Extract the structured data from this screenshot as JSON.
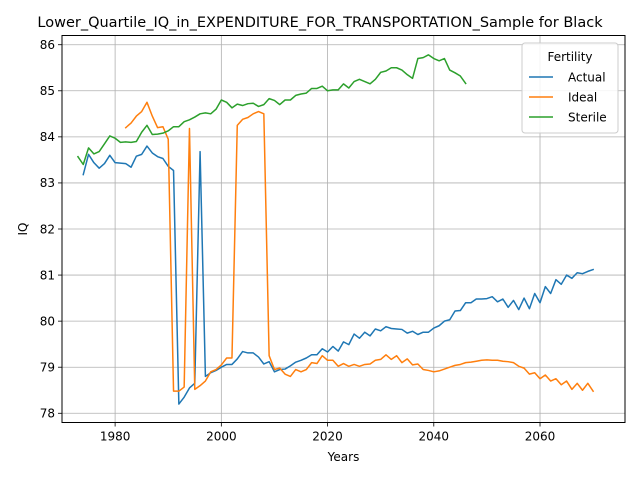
{
  "chart_data": {
    "type": "line",
    "title": "Lower_Quartile_IQ_in_EXPENDITURE_FOR_TRANSPORTATION_Sample for Black",
    "xlabel": "Years",
    "ylabel": "IQ",
    "xlim": [
      1970,
      2076
    ],
    "ylim": [
      77.8,
      86.2
    ],
    "xticks": [
      1980,
      2000,
      2020,
      2040,
      2060
    ],
    "yticks": [
      78,
      79,
      80,
      81,
      82,
      83,
      84,
      85,
      86
    ],
    "grid": true,
    "legend": {
      "title": "Fertility",
      "placement": "top-right"
    },
    "series": [
      {
        "name": "Actual",
        "color": "#1f77b4",
        "points": [
          [
            1974,
            83.18
          ],
          [
            1975,
            83.62
          ],
          [
            1976,
            83.44
          ],
          [
            1977,
            83.32
          ],
          [
            1978,
            83.42
          ],
          [
            1979,
            83.6
          ],
          [
            1980,
            83.44
          ],
          [
            1981,
            83.43
          ],
          [
            1982,
            83.42
          ],
          [
            1983,
            83.34
          ],
          [
            1984,
            83.58
          ],
          [
            1985,
            83.62
          ],
          [
            1986,
            83.8
          ],
          [
            1987,
            83.65
          ],
          [
            1988,
            83.57
          ],
          [
            1989,
            83.53
          ],
          [
            1990,
            83.36
          ],
          [
            1991,
            83.27
          ],
          [
            1992,
            78.2
          ],
          [
            1993,
            78.35
          ],
          [
            1994,
            78.55
          ],
          [
            1995,
            78.65
          ],
          [
            1996,
            83.68
          ],
          [
            1997,
            78.8
          ],
          [
            1998,
            78.88
          ],
          [
            1999,
            78.93
          ],
          [
            2000,
            79.0
          ],
          [
            2001,
            79.06
          ],
          [
            2002,
            79.06
          ],
          [
            2003,
            79.18
          ],
          [
            2004,
            79.34
          ],
          [
            2005,
            79.31
          ],
          [
            2006,
            79.31
          ],
          [
            2007,
            79.22
          ],
          [
            2008,
            79.07
          ],
          [
            2009,
            79.12
          ],
          [
            2010,
            78.9
          ],
          [
            2011,
            78.95
          ],
          [
            2012,
            78.96
          ],
          [
            2013,
            79.03
          ],
          [
            2014,
            79.11
          ],
          [
            2015,
            79.15
          ],
          [
            2016,
            79.2
          ],
          [
            2017,
            79.27
          ],
          [
            2018,
            79.27
          ],
          [
            2019,
            79.4
          ],
          [
            2020,
            79.33
          ],
          [
            2021,
            79.45
          ],
          [
            2022,
            79.35
          ],
          [
            2023,
            79.55
          ],
          [
            2024,
            79.49
          ],
          [
            2025,
            79.72
          ],
          [
            2026,
            79.63
          ],
          [
            2027,
            79.76
          ],
          [
            2028,
            79.68
          ],
          [
            2029,
            79.83
          ],
          [
            2030,
            79.79
          ],
          [
            2031,
            79.88
          ],
          [
            2032,
            79.84
          ],
          [
            2033,
            79.83
          ],
          [
            2034,
            79.82
          ],
          [
            2035,
            79.74
          ],
          [
            2036,
            79.78
          ],
          [
            2037,
            79.71
          ],
          [
            2038,
            79.76
          ],
          [
            2039,
            79.76
          ],
          [
            2040,
            79.85
          ],
          [
            2041,
            79.9
          ],
          [
            2042,
            80.0
          ],
          [
            2043,
            80.03
          ],
          [
            2044,
            80.22
          ],
          [
            2045,
            80.23
          ],
          [
            2046,
            80.4
          ],
          [
            2047,
            80.4
          ],
          [
            2048,
            80.48
          ],
          [
            2049,
            80.48
          ],
          [
            2050,
            80.49
          ],
          [
            2051,
            80.53
          ],
          [
            2052,
            80.42
          ],
          [
            2053,
            80.48
          ],
          [
            2054,
            80.3
          ],
          [
            2055,
            80.45
          ],
          [
            2056,
            80.25
          ],
          [
            2057,
            80.5
          ],
          [
            2058,
            80.27
          ],
          [
            2059,
            80.6
          ],
          [
            2060,
            80.4
          ],
          [
            2061,
            80.75
          ],
          [
            2062,
            80.6
          ],
          [
            2063,
            80.9
          ],
          [
            2064,
            80.8
          ],
          [
            2065,
            81.0
          ],
          [
            2066,
            80.93
          ],
          [
            2067,
            81.05
          ],
          [
            2068,
            81.03
          ],
          [
            2069,
            81.08
          ],
          [
            2070,
            81.12
          ]
        ]
      },
      {
        "name": "Ideal",
        "color": "#ff7f0e",
        "points": [
          [
            1982,
            84.2
          ],
          [
            1983,
            84.3
          ],
          [
            1984,
            84.45
          ],
          [
            1985,
            84.55
          ],
          [
            1986,
            84.75
          ],
          [
            1987,
            84.45
          ],
          [
            1988,
            84.2
          ],
          [
            1989,
            84.22
          ],
          [
            1990,
            83.95
          ],
          [
            1991,
            78.48
          ],
          [
            1992,
            78.48
          ],
          [
            1993,
            78.57
          ],
          [
            1994,
            84.18
          ],
          [
            1995,
            78.52
          ],
          [
            1996,
            78.6
          ],
          [
            1997,
            78.7
          ],
          [
            1998,
            78.9
          ],
          [
            1999,
            78.95
          ],
          [
            2000,
            79.05
          ],
          [
            2001,
            79.2
          ],
          [
            2002,
            79.2
          ],
          [
            2003,
            84.25
          ],
          [
            2004,
            84.38
          ],
          [
            2005,
            84.42
          ],
          [
            2006,
            84.5
          ],
          [
            2007,
            84.55
          ],
          [
            2008,
            84.5
          ],
          [
            2009,
            79.25
          ],
          [
            2010,
            78.95
          ],
          [
            2011,
            78.98
          ],
          [
            2012,
            78.85
          ],
          [
            2013,
            78.8
          ],
          [
            2014,
            78.95
          ],
          [
            2015,
            78.9
          ],
          [
            2016,
            78.95
          ],
          [
            2017,
            79.1
          ],
          [
            2018,
            79.08
          ],
          [
            2019,
            79.25
          ],
          [
            2020,
            79.15
          ],
          [
            2021,
            79.15
          ],
          [
            2022,
            79.02
          ],
          [
            2023,
            79.08
          ],
          [
            2024,
            79.02
          ],
          [
            2025,
            79.06
          ],
          [
            2026,
            79.02
          ],
          [
            2027,
            79.06
          ],
          [
            2028,
            79.07
          ],
          [
            2029,
            79.15
          ],
          [
            2030,
            79.17
          ],
          [
            2031,
            79.27
          ],
          [
            2032,
            79.17
          ],
          [
            2033,
            79.25
          ],
          [
            2034,
            79.1
          ],
          [
            2035,
            79.18
          ],
          [
            2036,
            79.05
          ],
          [
            2037,
            79.07
          ],
          [
            2038,
            78.95
          ],
          [
            2039,
            78.93
          ],
          [
            2040,
            78.9
          ],
          [
            2041,
            78.92
          ],
          [
            2042,
            78.96
          ],
          [
            2043,
            79.0
          ],
          [
            2044,
            79.04
          ],
          [
            2045,
            79.06
          ],
          [
            2046,
            79.1
          ],
          [
            2047,
            79.11
          ],
          [
            2048,
            79.13
          ],
          [
            2049,
            79.15
          ],
          [
            2050,
            79.16
          ],
          [
            2051,
            79.15
          ],
          [
            2052,
            79.15
          ],
          [
            2053,
            79.13
          ],
          [
            2054,
            79.12
          ],
          [
            2055,
            79.1
          ],
          [
            2056,
            79.02
          ],
          [
            2057,
            78.98
          ],
          [
            2058,
            78.85
          ],
          [
            2059,
            78.88
          ],
          [
            2060,
            78.75
          ],
          [
            2061,
            78.83
          ],
          [
            2062,
            78.7
          ],
          [
            2063,
            78.75
          ],
          [
            2064,
            78.62
          ],
          [
            2065,
            78.7
          ],
          [
            2066,
            78.52
          ],
          [
            2067,
            78.65
          ],
          [
            2068,
            78.5
          ],
          [
            2069,
            78.65
          ],
          [
            2070,
            78.48
          ]
        ]
      },
      {
        "name": "Sterile",
        "color": "#2ca02c",
        "points": [
          [
            1973,
            83.57
          ],
          [
            1974,
            83.4
          ],
          [
            1975,
            83.76
          ],
          [
            1976,
            83.63
          ],
          [
            1977,
            83.68
          ],
          [
            1978,
            83.85
          ],
          [
            1979,
            84.02
          ],
          [
            1980,
            83.97
          ],
          [
            1981,
            83.88
          ],
          [
            1982,
            83.89
          ],
          [
            1983,
            83.88
          ],
          [
            1984,
            83.9
          ],
          [
            1985,
            84.1
          ],
          [
            1986,
            84.25
          ],
          [
            1987,
            84.05
          ],
          [
            1988,
            84.06
          ],
          [
            1989,
            84.08
          ],
          [
            1990,
            84.13
          ],
          [
            1991,
            84.22
          ],
          [
            1992,
            84.22
          ],
          [
            1993,
            84.33
          ],
          [
            1994,
            84.37
          ],
          [
            1995,
            84.43
          ],
          [
            1996,
            84.5
          ],
          [
            1997,
            84.52
          ],
          [
            1998,
            84.5
          ],
          [
            1999,
            84.6
          ],
          [
            2000,
            84.8
          ],
          [
            2001,
            84.75
          ],
          [
            2002,
            84.63
          ],
          [
            2003,
            84.71
          ],
          [
            2004,
            84.68
          ],
          [
            2005,
            84.72
          ],
          [
            2006,
            84.73
          ],
          [
            2007,
            84.66
          ],
          [
            2008,
            84.7
          ],
          [
            2009,
            84.83
          ],
          [
            2010,
            84.79
          ],
          [
            2011,
            84.7
          ],
          [
            2012,
            84.8
          ],
          [
            2013,
            84.8
          ],
          [
            2014,
            84.9
          ],
          [
            2015,
            84.93
          ],
          [
            2016,
            84.95
          ],
          [
            2017,
            85.05
          ],
          [
            2018,
            85.05
          ],
          [
            2019,
            85.1
          ],
          [
            2020,
            85.0
          ],
          [
            2021,
            85.02
          ],
          [
            2022,
            85.02
          ],
          [
            2023,
            85.15
          ],
          [
            2024,
            85.06
          ],
          [
            2025,
            85.2
          ],
          [
            2026,
            85.25
          ],
          [
            2027,
            85.2
          ],
          [
            2028,
            85.15
          ],
          [
            2029,
            85.25
          ],
          [
            2030,
            85.4
          ],
          [
            2031,
            85.43
          ],
          [
            2032,
            85.5
          ],
          [
            2033,
            85.5
          ],
          [
            2034,
            85.45
          ],
          [
            2035,
            85.35
          ],
          [
            2036,
            85.27
          ],
          [
            2037,
            85.7
          ],
          [
            2038,
            85.72
          ],
          [
            2039,
            85.78
          ],
          [
            2040,
            85.7
          ],
          [
            2041,
            85.65
          ],
          [
            2042,
            85.7
          ],
          [
            2043,
            85.45
          ],
          [
            2044,
            85.39
          ],
          [
            2045,
            85.32
          ],
          [
            2046,
            85.16
          ]
        ]
      }
    ]
  }
}
